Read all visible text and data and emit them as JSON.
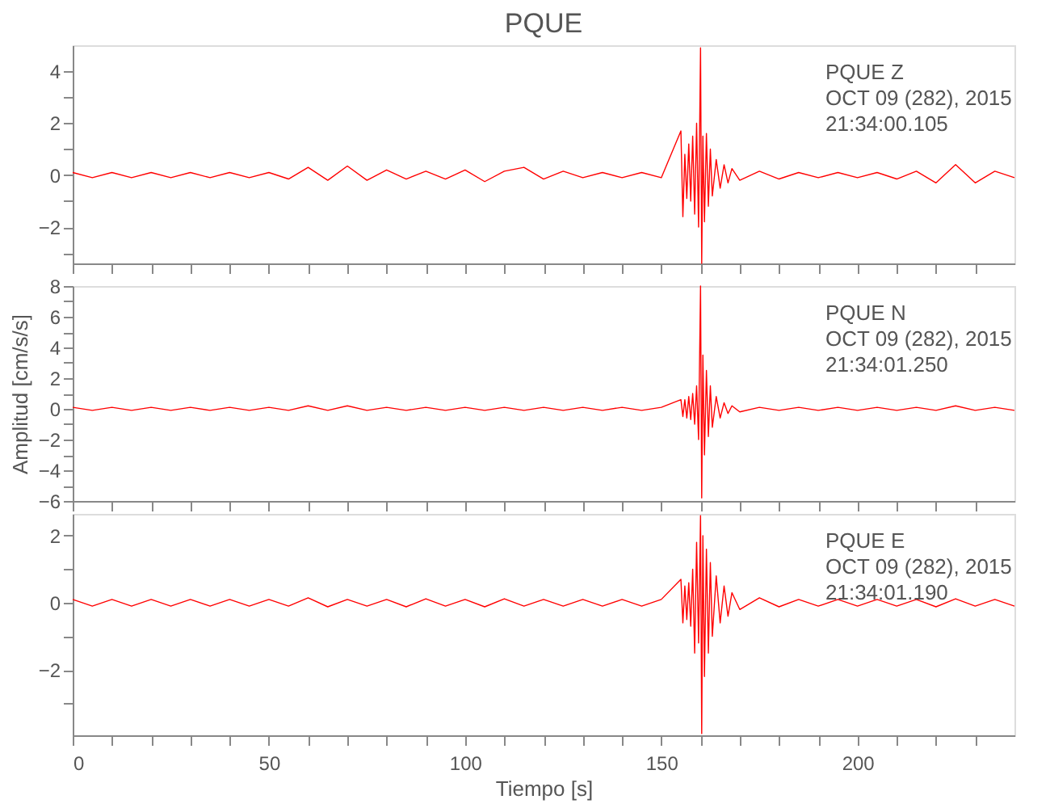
{
  "chart_data": [
    {
      "type": "line",
      "title": "PQUE",
      "annotations": [
        "PQUE   Z",
        "OCT 09 (282), 2015",
        "21:34:00.105"
      ],
      "xlim": [
        0,
        240
      ],
      "ylim": [
        -3.4,
        5
      ],
      "tick_labels": "y",
      "grid": false,
      "xticks": [
        0,
        {
          "value": 10,
          "label": null
        },
        {
          "value": 20,
          "label": null
        },
        {
          "value": 30,
          "label": null
        },
        {
          "value": 40,
          "label": null
        },
        50,
        {
          "value": 60,
          "label": null
        },
        {
          "value": 70,
          "label": null
        },
        {
          "value": 80,
          "label": null
        },
        {
          "value": 90,
          "label": null
        },
        100,
        {
          "value": 110,
          "label": null
        },
        {
          "value": 120,
          "label": null
        },
        {
          "value": 130,
          "label": null
        },
        {
          "value": 140,
          "label": null
        },
        150,
        {
          "value": 160,
          "label": null
        },
        {
          "value": 170,
          "label": null
        },
        {
          "value": 180,
          "label": null
        },
        {
          "value": 190,
          "label": null
        },
        200,
        {
          "value": 210,
          "label": null
        },
        {
          "value": 220,
          "label": null
        },
        {
          "value": 230,
          "label": null
        }
      ],
      "yticks": [
        {
          "value": -3,
          "label": null
        },
        -2,
        {
          "value": -1,
          "label": null
        },
        0,
        {
          "value": 1,
          "label": null
        },
        2,
        {
          "value": 3,
          "label": null
        },
        4
      ],
      "x": [
        0,
        5,
        10,
        15,
        20,
        25,
        30,
        35,
        40,
        45,
        50,
        55,
        60,
        65,
        70,
        75,
        80,
        85,
        90,
        95,
        100,
        105,
        110,
        115,
        120,
        125,
        130,
        135,
        140,
        145,
        150,
        155,
        155.5,
        156,
        156.5,
        157,
        157.5,
        158,
        158.5,
        159,
        159.5,
        160,
        160.3,
        160.6,
        161,
        161.5,
        162,
        162.5,
        163,
        164,
        165,
        166,
        167,
        168,
        170,
        175,
        180,
        185,
        190,
        195,
        200,
        205,
        210,
        215,
        220,
        225,
        230,
        235,
        240
      ],
      "series": [
        {
          "color": "#ff0000",
          "values": [
            0.1,
            -0.1,
            0.1,
            -0.1,
            0.1,
            -0.1,
            0.1,
            -0.1,
            0.1,
            -0.1,
            0.1,
            -0.15,
            0.3,
            -0.2,
            0.35,
            -0.2,
            0.2,
            -0.15,
            0.15,
            -0.15,
            0.2,
            -0.25,
            0.15,
            0.3,
            -0.15,
            0.15,
            -0.1,
            0.1,
            -0.1,
            0.1,
            -0.1,
            1.7,
            -1.6,
            0.8,
            -0.9,
            1.2,
            -1.0,
            1.5,
            -1.5,
            2.0,
            -2.0,
            4.9,
            -3.4,
            1.5,
            -1.8,
            1.6,
            -1.2,
            1.0,
            -0.8,
            0.6,
            -0.5,
            0.4,
            -0.3,
            0.25,
            -0.2,
            0.15,
            -0.15,
            0.1,
            -0.1,
            0.1,
            -0.1,
            0.1,
            -0.15,
            0.15,
            -0.3,
            0.4,
            -0.3,
            0.15,
            -0.1
          ]
        }
      ]
    },
    {
      "type": "line",
      "ylabel": "Amplitud [cm/s/s]",
      "annotations": [
        "PQUE   N",
        "OCT 09 (282), 2015",
        "21:34:01.250"
      ],
      "xlim": [
        0,
        240
      ],
      "ylim": [
        -6,
        8
      ],
      "tick_labels": "y",
      "grid": false,
      "xticks": [
        0,
        {
          "value": 10,
          "label": null
        },
        {
          "value": 20,
          "label": null
        },
        {
          "value": 30,
          "label": null
        },
        {
          "value": 40,
          "label": null
        },
        50,
        {
          "value": 60,
          "label": null
        },
        {
          "value": 70,
          "label": null
        },
        {
          "value": 80,
          "label": null
        },
        {
          "value": 90,
          "label": null
        },
        100,
        {
          "value": 110,
          "label": null
        },
        {
          "value": 120,
          "label": null
        },
        {
          "value": 130,
          "label": null
        },
        {
          "value": 140,
          "label": null
        },
        150,
        {
          "value": 160,
          "label": null
        },
        {
          "value": 170,
          "label": null
        },
        {
          "value": 180,
          "label": null
        },
        {
          "value": 190,
          "label": null
        },
        200,
        {
          "value": 210,
          "label": null
        },
        {
          "value": 220,
          "label": null
        },
        {
          "value": 230,
          "label": null
        }
      ],
      "yticks": [
        -6,
        {
          "value": -5,
          "label": null
        },
        -4,
        {
          "value": -3,
          "label": null
        },
        -2,
        {
          "value": -1,
          "label": null
        },
        0,
        {
          "value": 1,
          "label": null
        },
        2,
        {
          "value": 3,
          "label": null
        },
        4,
        {
          "value": 5,
          "label": null
        },
        6,
        {
          "value": 7,
          "label": null
        },
        8
      ],
      "x": [
        0,
        5,
        10,
        15,
        20,
        25,
        30,
        35,
        40,
        45,
        50,
        55,
        60,
        65,
        70,
        75,
        80,
        85,
        90,
        95,
        100,
        105,
        110,
        115,
        120,
        125,
        130,
        135,
        140,
        145,
        150,
        155,
        155.5,
        156,
        156.5,
        157,
        157.5,
        158,
        158.5,
        159,
        159.5,
        160,
        160.3,
        160.6,
        161,
        161.5,
        162,
        162.5,
        163,
        164,
        165,
        166,
        167,
        168,
        170,
        175,
        180,
        185,
        190,
        195,
        200,
        205,
        210,
        215,
        220,
        225,
        230,
        235,
        240
      ],
      "series": [
        {
          "color": "#ff0000",
          "values": [
            0.1,
            -0.1,
            0.1,
            -0.1,
            0.1,
            -0.1,
            0.1,
            -0.1,
            0.1,
            -0.1,
            0.1,
            -0.1,
            0.2,
            -0.1,
            0.2,
            -0.1,
            0.1,
            -0.1,
            0.1,
            -0.1,
            0.1,
            -0.1,
            0.1,
            -0.1,
            0.1,
            -0.1,
            0.1,
            -0.1,
            0.1,
            -0.1,
            0.1,
            0.6,
            -0.5,
            0.6,
            -0.6,
            0.8,
            -0.7,
            1.0,
            -1.0,
            1.5,
            -2.0,
            8.0,
            -5.8,
            3.5,
            -3.0,
            2.5,
            -1.8,
            1.5,
            -1.2,
            0.8,
            -0.6,
            0.4,
            -0.3,
            0.2,
            -0.2,
            0.1,
            -0.1,
            0.1,
            -0.1,
            0.1,
            -0.1,
            0.1,
            -0.1,
            0.1,
            -0.1,
            0.2,
            -0.1,
            0.1,
            -0.1
          ]
        }
      ]
    },
    {
      "type": "line",
      "xlabel": "Tiempo [s]",
      "annotations": [
        "PQUE   E",
        "OCT 09 (282), 2015",
        "21:34:01.190"
      ],
      "xlim": [
        0,
        240
      ],
      "ylim": [
        -3.95,
        2.65
      ],
      "grid": false,
      "xticks": [
        0,
        {
          "value": 10,
          "label": null
        },
        {
          "value": 20,
          "label": null
        },
        {
          "value": 30,
          "label": null
        },
        {
          "value": 40,
          "label": null
        },
        50,
        {
          "value": 60,
          "label": null
        },
        {
          "value": 70,
          "label": null
        },
        {
          "value": 80,
          "label": null
        },
        {
          "value": 90,
          "label": null
        },
        100,
        {
          "value": 110,
          "label": null
        },
        {
          "value": 120,
          "label": null
        },
        {
          "value": 130,
          "label": null
        },
        {
          "value": 140,
          "label": null
        },
        150,
        {
          "value": 160,
          "label": null
        },
        {
          "value": 170,
          "label": null
        },
        {
          "value": 180,
          "label": null
        },
        {
          "value": 190,
          "label": null
        },
        200,
        {
          "value": 210,
          "label": null
        },
        {
          "value": 220,
          "label": null
        },
        {
          "value": 230,
          "label": null
        }
      ],
      "yticks": [
        {
          "value": -3,
          "label": null
        },
        -2,
        {
          "value": -1,
          "label": null
        },
        0,
        {
          "value": 1,
          "label": null
        },
        2
      ],
      "x": [
        0,
        5,
        10,
        15,
        20,
        25,
        30,
        35,
        40,
        45,
        50,
        55,
        60,
        65,
        70,
        75,
        80,
        85,
        90,
        95,
        100,
        105,
        110,
        115,
        120,
        125,
        130,
        135,
        140,
        145,
        150,
        155,
        155.5,
        156,
        156.5,
        157,
        157.5,
        158,
        158.5,
        159,
        159.5,
        160,
        160.3,
        160.6,
        161,
        161.5,
        162,
        162.5,
        163,
        164,
        165,
        166,
        167,
        168,
        170,
        175,
        180,
        185,
        190,
        195,
        200,
        205,
        210,
        215,
        220,
        225,
        230,
        235,
        240
      ],
      "series": [
        {
          "color": "#ff0000",
          "values": [
            0.1,
            -0.1,
            0.1,
            -0.1,
            0.1,
            -0.1,
            0.1,
            -0.1,
            0.1,
            -0.1,
            0.1,
            -0.1,
            0.15,
            -0.12,
            0.1,
            -0.1,
            0.1,
            -0.12,
            0.12,
            -0.1,
            0.1,
            -0.12,
            0.12,
            -0.1,
            0.1,
            -0.1,
            0.1,
            -0.1,
            0.1,
            -0.1,
            0.1,
            0.7,
            -0.6,
            0.5,
            -0.5,
            0.6,
            -0.7,
            1.0,
            -1.5,
            1.8,
            -1.2,
            2.6,
            -3.9,
            2.0,
            -2.2,
            1.6,
            -1.5,
            1.2,
            -1.0,
            0.8,
            -0.6,
            0.5,
            -0.4,
            0.3,
            -0.2,
            0.15,
            -0.12,
            0.1,
            -0.1,
            0.1,
            -0.1,
            0.1,
            -0.1,
            0.1,
            -0.12,
            0.12,
            -0.1,
            0.1,
            -0.1
          ]
        }
      ]
    }
  ]
}
